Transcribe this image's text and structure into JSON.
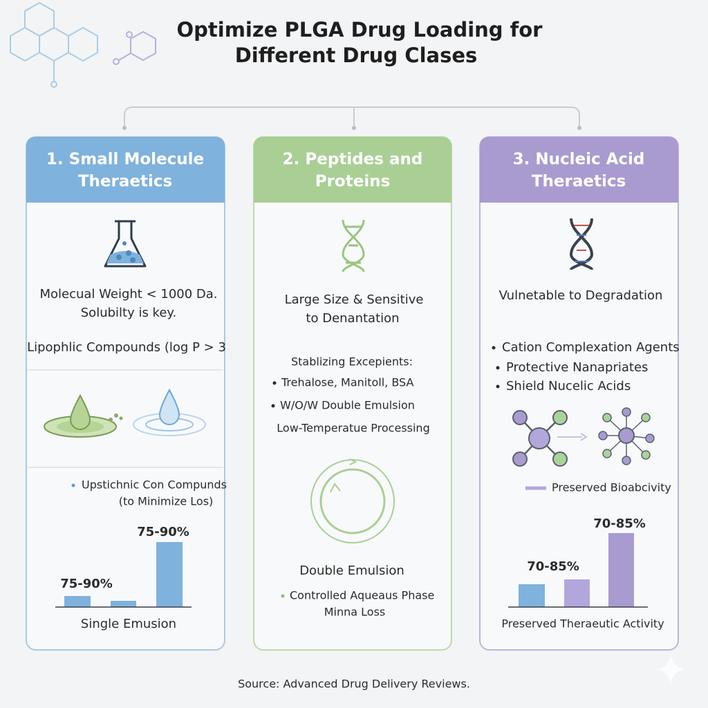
{
  "title": [
    "Optimize PLGA Drug Loading for",
    "Different Drug Clases"
  ],
  "panels": [
    {
      "heading": [
        "1. Small Molecule",
        "Theraetics"
      ],
      "description": [
        "Molecual Weight < 1000 Da.",
        "Solubilty is key."
      ],
      "compounds": "Lipophlic Compounds (log P > 3",
      "note": [
        "Upstichnic Con Compunds",
        "(to Minimize Los)"
      ],
      "bar_labels": [
        "75-90%",
        "75-90%"
      ],
      "method": "Single Emusion"
    },
    {
      "heading": [
        "2. Peptides and",
        "Proteins"
      ],
      "description": [
        "Large Size & Sensitive",
        "to Denantation"
      ],
      "excipients_title": "Stablizing Excepients:",
      "bullets": [
        "Trehalose, Manitoll, BSA",
        "W/O/W Double Emulsion"
      ],
      "processing": "Low-Temperatue Processing",
      "method": "Double Emulsion",
      "note": [
        "Controlled Aqueaus Phase",
        "Minna Loss"
      ]
    },
    {
      "heading": [
        "3. Nucleic Acid",
        "Theraetics"
      ],
      "description": "Vulnetable to Degradation",
      "bullets": [
        "Cation Complexation Agents",
        "Protective Nanapriates",
        "Shield Nucelic Acids"
      ],
      "legend": "Preserved Bioabcivity",
      "bar_labels": [
        "70-85%",
        "70-85%"
      ],
      "method": "Preserved Theraeutic Activity"
    }
  ],
  "source": "Source: Advanced Drug Delivery Reviews."
}
